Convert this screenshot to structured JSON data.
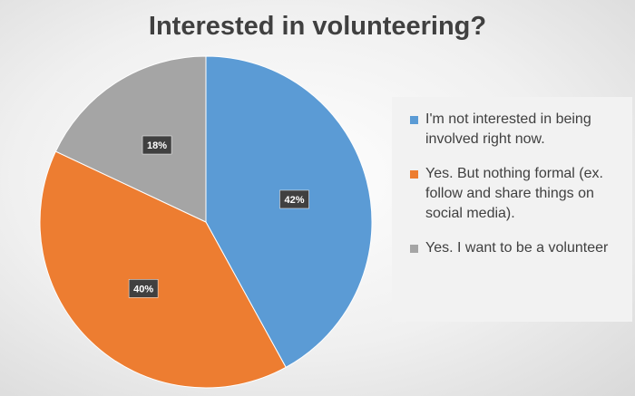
{
  "chart_data": {
    "type": "pie",
    "title": "Interested in volunteering?",
    "categories": [
      "I'm not interested in being involved right now.",
      "Yes. But nothing formal (ex. follow and share things on social media).",
      "Yes. I want to be a volunteer"
    ],
    "values": [
      42,
      40,
      18
    ],
    "value_labels": [
      "42%",
      "40%",
      "18%"
    ],
    "colors": [
      "#5b9bd5",
      "#ed7d31",
      "#a5a5a5"
    ],
    "legend": "right"
  }
}
